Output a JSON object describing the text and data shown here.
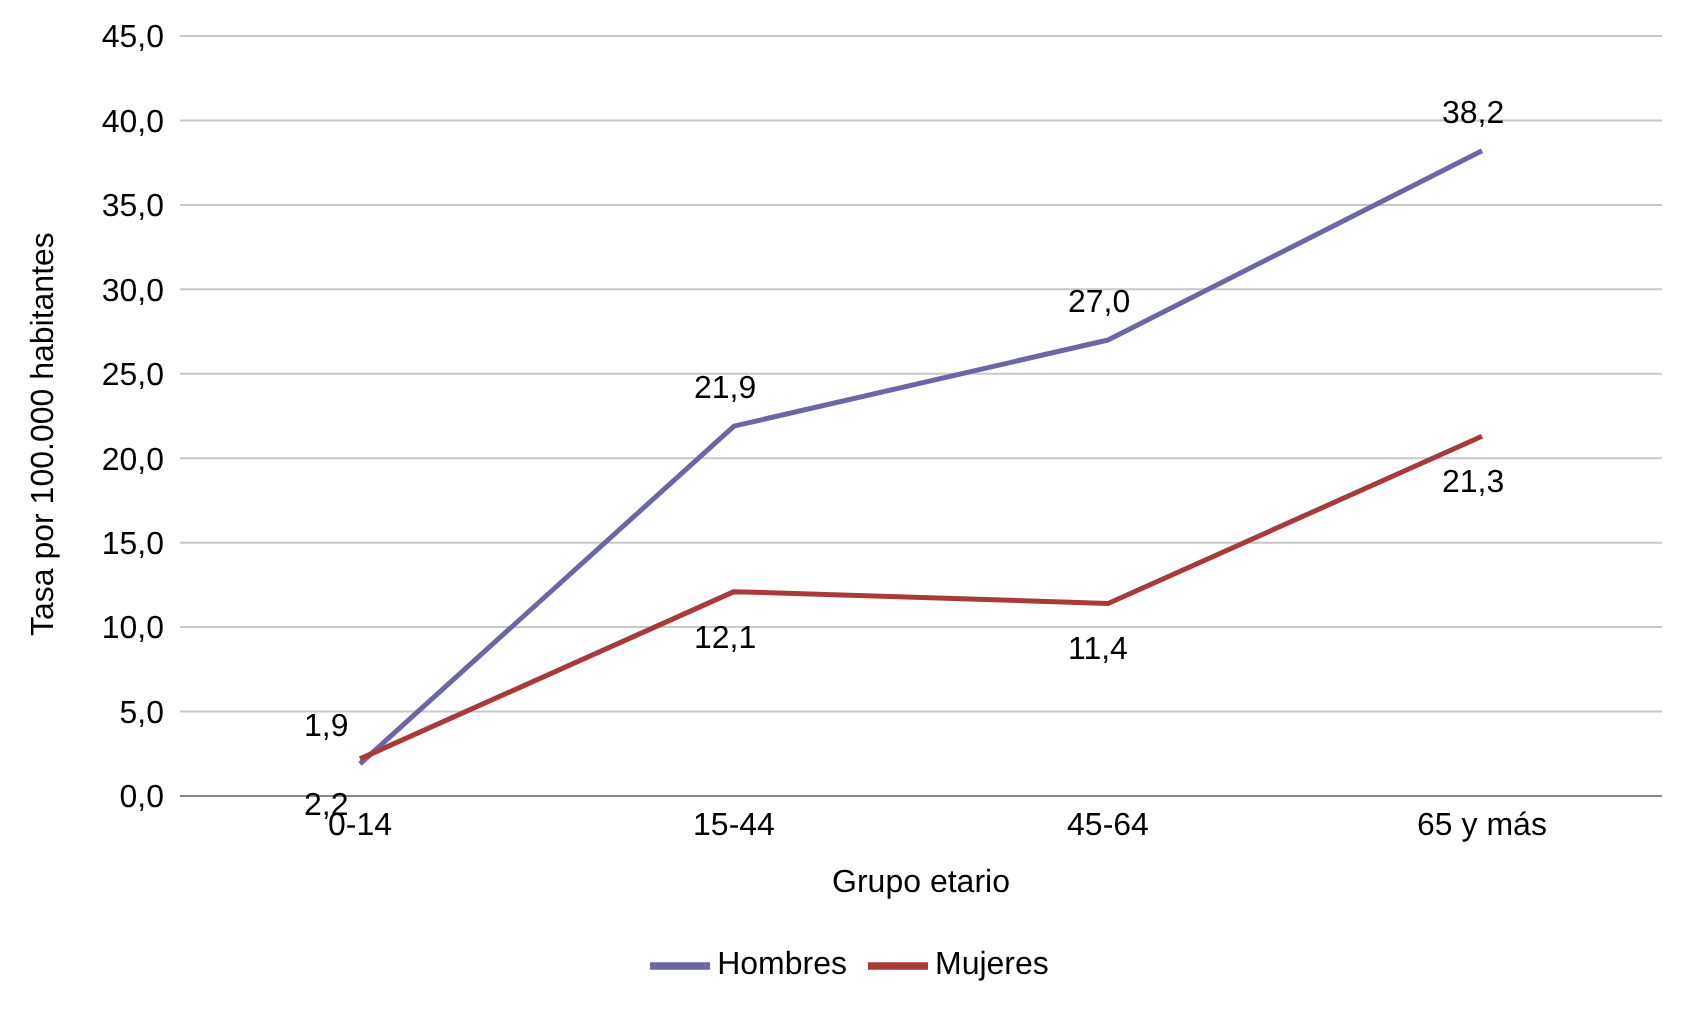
{
  "chart_data": {
    "type": "line",
    "xlabel": "Grupo etario",
    "ylabel": "Tasa por 100.000 habitantes",
    "categories": [
      "0-14",
      "15-44",
      "45-64",
      "65 y más"
    ],
    "series": [
      {
        "name": "Hombres",
        "color": "#6b66a6",
        "values": [
          1.9,
          21.9,
          27.0,
          38.2
        ],
        "value_labels": [
          "1,9",
          "21,9",
          "27,0",
          "38,2"
        ]
      },
      {
        "name": "Mujeres",
        "color": "#a83a3a",
        "values": [
          2.2,
          12.1,
          11.4,
          21.3
        ],
        "value_labels": [
          "2,2",
          "12,1",
          "11,4",
          "21,3"
        ]
      }
    ],
    "ylim": [
      0,
      45
    ],
    "yticks": [
      {
        "value": 0,
        "label": "0,0"
      },
      {
        "value": 5,
        "label": "5,0"
      },
      {
        "value": 10,
        "label": "10,0"
      },
      {
        "value": 15,
        "label": "15,0"
      },
      {
        "value": 20,
        "label": "20,0"
      },
      {
        "value": 25,
        "label": "25,0"
      },
      {
        "value": 30,
        "label": "30,0"
      },
      {
        "value": 35,
        "label": "35,0"
      },
      {
        "value": 40,
        "label": "40,0"
      },
      {
        "value": 45,
        "label": "45,0"
      }
    ],
    "grid": "y",
    "legend": "bottom",
    "marker": "none",
    "line_style": "solid"
  }
}
